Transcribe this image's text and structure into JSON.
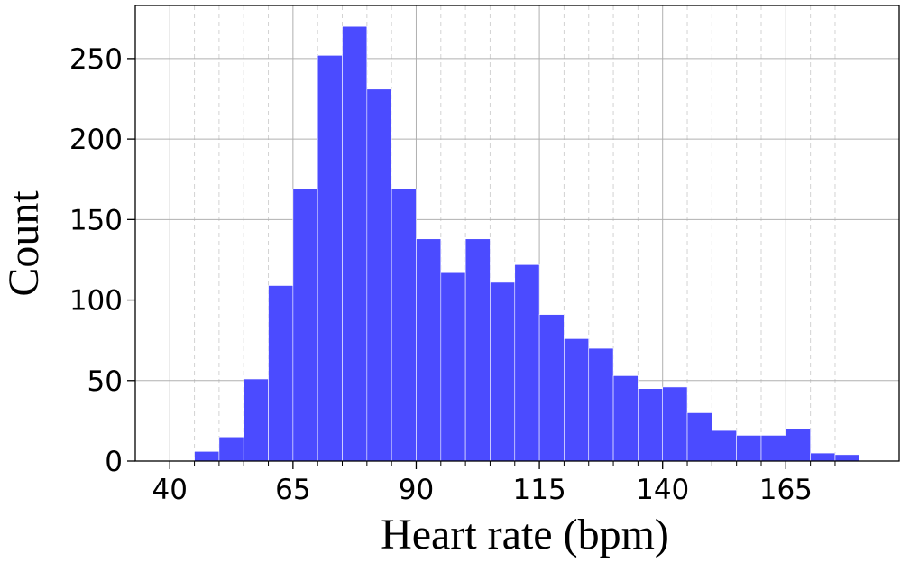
{
  "chart_data": {
    "type": "bar",
    "title": "",
    "xlabel": "Heart rate (bpm)",
    "ylabel": "Count",
    "xlim": [
      33,
      188
    ],
    "ylim": [
      0,
      283
    ],
    "xticks": [
      40,
      65,
      90,
      115,
      140,
      165
    ],
    "yticks": [
      0,
      50,
      100,
      150,
      200,
      250
    ],
    "minor_xticks": [
      45,
      50,
      55,
      60,
      70,
      75,
      80,
      85,
      95,
      100,
      105,
      110,
      120,
      125,
      130,
      135,
      145,
      150,
      155,
      160,
      170,
      175
    ],
    "bin_edges": [
      45,
      50,
      55,
      60,
      65,
      70,
      75,
      80,
      85,
      90,
      95,
      100,
      105,
      110,
      115,
      120,
      125,
      130,
      135,
      140,
      145,
      150,
      155,
      160,
      165,
      170,
      175,
      180
    ],
    "values": [
      6,
      15,
      51,
      109,
      169,
      252,
      270,
      231,
      169,
      138,
      117,
      138,
      111,
      122,
      91,
      76,
      70,
      53,
      45,
      46,
      30,
      19,
      16,
      16,
      20,
      5,
      4
    ],
    "bar_color": "#4b4bff",
    "grid": true
  }
}
